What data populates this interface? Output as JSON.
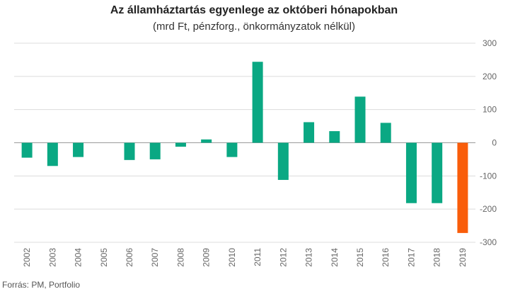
{
  "chart_data": {
    "type": "bar",
    "title": "Az államháztartás egyenlege az októberi hónapokban",
    "subtitle": "(mrd Ft, pénzforg., önkormányzatok nélkül)",
    "source": "Forrás: PM, Portfolio",
    "categories": [
      "2002",
      "2003",
      "2004",
      "2005",
      "2006",
      "2007",
      "2008",
      "2009",
      "2010",
      "2011",
      "2012",
      "2013",
      "2014",
      "2015",
      "2016",
      "2017",
      "2018",
      "2019"
    ],
    "values": [
      -45,
      -70,
      -43,
      0,
      -52,
      -50,
      -12,
      10,
      -43,
      244,
      -112,
      62,
      35,
      139,
      60,
      -182,
      -182,
      -272
    ],
    "ylim": [
      -300,
      300
    ],
    "yticks": [
      -300,
      -200,
      -100,
      0,
      100,
      200,
      300
    ],
    "grid": true,
    "colors": {
      "default": "#0aa883",
      "highlight": "#f95d0a",
      "highlight_category": "2019"
    }
  }
}
